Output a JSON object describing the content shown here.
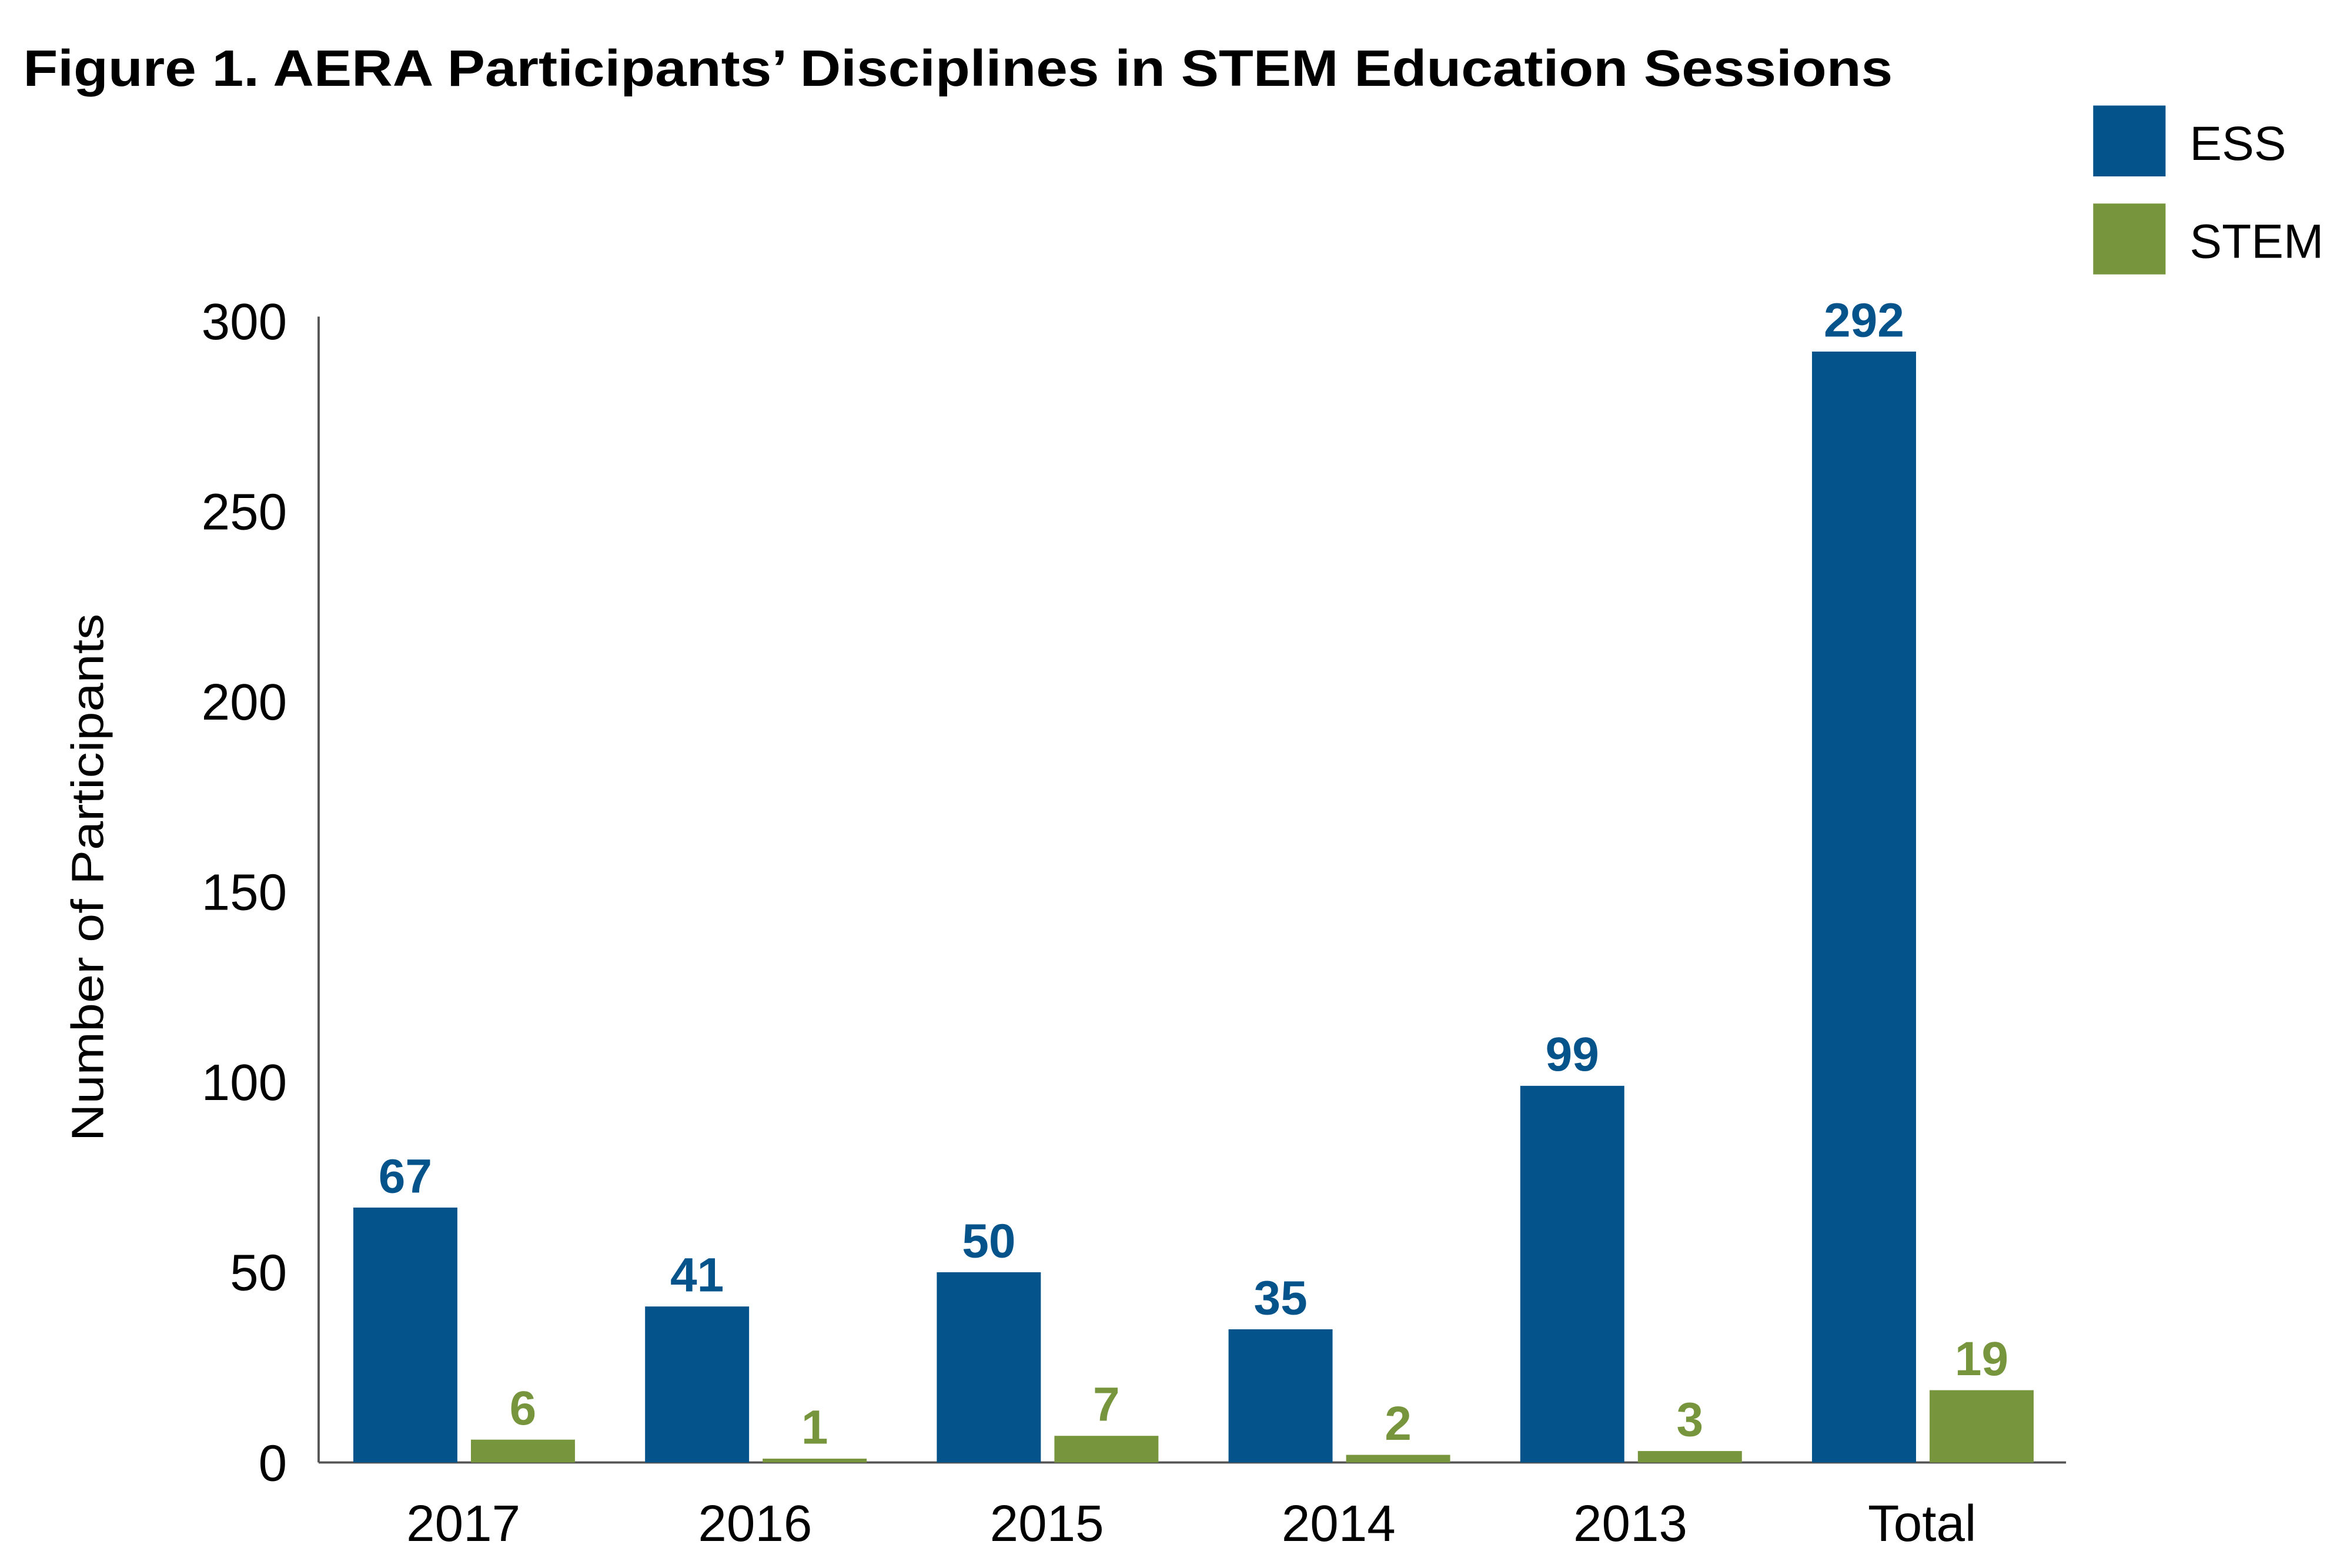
{
  "chart_data": {
    "type": "bar",
    "title": "Figure 1. AERA Participants’ Disciplines in STEM Education Sessions",
    "y_label": "Number of Participants",
    "categories": [
      "2017",
      "2016",
      "2015",
      "2014",
      "2013",
      "Total"
    ],
    "series": [
      {
        "name": "ESS",
        "color": "#04538a",
        "values": [
          67,
          41,
          50,
          35,
          99,
          292
        ]
      },
      {
        "name": "STEM",
        "color": "#77953c",
        "values": [
          6,
          1,
          7,
          2,
          3,
          19
        ]
      }
    ],
    "ylim": [
      0,
      300
    ],
    "yticks": [
      0,
      50,
      100,
      150,
      200,
      250,
      300
    ],
    "grid": false,
    "legend": "top-right"
  }
}
